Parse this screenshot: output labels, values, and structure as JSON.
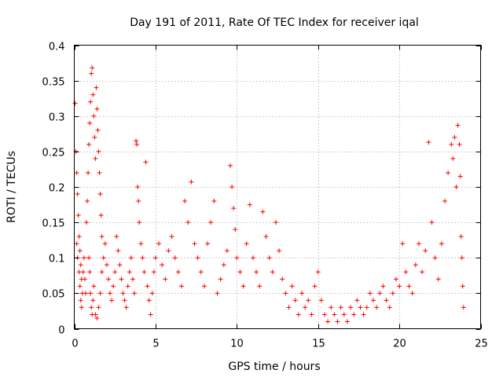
{
  "chart_data": {
    "type": "scatter",
    "title": "Day 191 of 2011, Rate Of TEC Index for receiver iqal",
    "xlabel": "GPS time / hours",
    "ylabel": "ROTI / TECUs",
    "xlim": [
      0,
      25
    ],
    "ylim": [
      0,
      0.4
    ],
    "xticks": [
      0,
      5,
      10,
      15,
      20,
      25
    ],
    "xtick_labels": [
      "0",
      "5",
      "10",
      "15",
      "20",
      "25"
    ],
    "yticks": [
      0,
      0.05,
      0.1,
      0.15,
      0.2,
      0.25,
      0.3,
      0.35,
      0.4
    ],
    "ytick_labels": [
      "0",
      "0.05",
      "0.1",
      "0.15",
      "0.2",
      "0.25",
      "0.3",
      "0.35",
      "0.4"
    ],
    "grid": true,
    "marker": "plus",
    "color": "#ff0000",
    "series": [
      {
        "values_note_free": true,
        "points": [
          [
            0.05,
            0.318
          ],
          [
            0.1,
            0.25
          ],
          [
            0.15,
            0.22
          ],
          [
            0.2,
            0.19
          ],
          [
            0.25,
            0.16
          ],
          [
            0.3,
            0.13
          ],
          [
            0.35,
            0.11
          ],
          [
            0.4,
            0.09
          ],
          [
            0.45,
            0.07
          ],
          [
            0.5,
            0.05
          ],
          [
            0.15,
            0.12
          ],
          [
            0.2,
            0.1
          ],
          [
            0.3,
            0.08
          ],
          [
            0.35,
            0.06
          ],
          [
            0.4,
            0.04
          ],
          [
            0.45,
            0.03
          ],
          [
            0.55,
            0.08
          ],
          [
            0.6,
            0.1
          ],
          [
            0.65,
            0.07
          ],
          [
            0.7,
            0.05
          ],
          [
            0.75,
            0.15
          ],
          [
            0.8,
            0.18
          ],
          [
            0.85,
            0.22
          ],
          [
            0.9,
            0.26
          ],
          [
            0.95,
            0.29
          ],
          [
            1.0,
            0.32
          ],
          [
            1.05,
            0.36
          ],
          [
            1.1,
            0.368
          ],
          [
            1.15,
            0.33
          ],
          [
            1.2,
            0.3
          ],
          [
            1.25,
            0.27
          ],
          [
            1.3,
            0.24
          ],
          [
            1.35,
            0.34
          ],
          [
            1.4,
            0.31
          ],
          [
            1.45,
            0.28
          ],
          [
            1.5,
            0.25
          ],
          [
            1.55,
            0.22
          ],
          [
            1.6,
            0.19
          ],
          [
            1.65,
            0.16
          ],
          [
            1.7,
            0.13
          ],
          [
            0.9,
            0.1
          ],
          [
            0.95,
            0.08
          ],
          [
            1.0,
            0.05
          ],
          [
            1.05,
            0.03
          ],
          [
            1.1,
            0.02
          ],
          [
            1.15,
            0.04
          ],
          [
            1.2,
            0.06
          ],
          [
            1.3,
            0.02
          ],
          [
            1.4,
            0.015
          ],
          [
            1.5,
            0.03
          ],
          [
            1.6,
            0.05
          ],
          [
            1.7,
            0.08
          ],
          [
            1.8,
            0.1
          ],
          [
            1.9,
            0.12
          ],
          [
            2.0,
            0.09
          ],
          [
            2.1,
            0.07
          ],
          [
            2.2,
            0.05
          ],
          [
            2.3,
            0.04
          ],
          [
            2.4,
            0.06
          ],
          [
            2.5,
            0.08
          ],
          [
            2.6,
            0.13
          ],
          [
            2.7,
            0.11
          ],
          [
            2.8,
            0.09
          ],
          [
            2.9,
            0.07
          ],
          [
            3.0,
            0.05
          ],
          [
            3.1,
            0.04
          ],
          [
            3.2,
            0.03
          ],
          [
            3.3,
            0.06
          ],
          [
            3.4,
            0.08
          ],
          [
            3.5,
            0.1
          ],
          [
            3.6,
            0.07
          ],
          [
            3.7,
            0.05
          ],
          [
            3.8,
            0.265
          ],
          [
            3.85,
            0.26
          ],
          [
            3.9,
            0.2
          ],
          [
            3.95,
            0.18
          ],
          [
            4.0,
            0.15
          ],
          [
            4.1,
            0.12
          ],
          [
            4.2,
            0.1
          ],
          [
            4.3,
            0.08
          ],
          [
            4.4,
            0.235
          ],
          [
            4.5,
            0.06
          ],
          [
            4.6,
            0.04
          ],
          [
            4.7,
            0.02
          ],
          [
            4.8,
            0.05
          ],
          [
            4.9,
            0.08
          ],
          [
            5.0,
            0.1
          ],
          [
            5.2,
            0.12
          ],
          [
            5.4,
            0.09
          ],
          [
            5.6,
            0.07
          ],
          [
            5.8,
            0.11
          ],
          [
            6.0,
            0.13
          ],
          [
            6.2,
            0.1
          ],
          [
            6.4,
            0.08
          ],
          [
            6.6,
            0.06
          ],
          [
            6.8,
            0.18
          ],
          [
            7.0,
            0.15
          ],
          [
            7.2,
            0.207
          ],
          [
            7.4,
            0.12
          ],
          [
            7.6,
            0.1
          ],
          [
            7.8,
            0.08
          ],
          [
            8.0,
            0.06
          ],
          [
            8.2,
            0.12
          ],
          [
            8.4,
            0.15
          ],
          [
            8.6,
            0.18
          ],
          [
            8.8,
            0.05
          ],
          [
            9.0,
            0.07
          ],
          [
            9.2,
            0.09
          ],
          [
            9.4,
            0.11
          ],
          [
            9.6,
            0.23
          ],
          [
            9.7,
            0.2
          ],
          [
            9.8,
            0.17
          ],
          [
            9.9,
            0.14
          ],
          [
            10.0,
            0.1
          ],
          [
            10.2,
            0.08
          ],
          [
            10.4,
            0.06
          ],
          [
            10.6,
            0.12
          ],
          [
            10.8,
            0.175
          ],
          [
            11.0,
            0.1
          ],
          [
            11.2,
            0.08
          ],
          [
            11.4,
            0.06
          ],
          [
            11.6,
            0.165
          ],
          [
            11.8,
            0.13
          ],
          [
            12.0,
            0.1
          ],
          [
            12.2,
            0.08
          ],
          [
            12.4,
            0.15
          ],
          [
            12.6,
            0.11
          ],
          [
            12.8,
            0.07
          ],
          [
            13.0,
            0.05
          ],
          [
            13.2,
            0.03
          ],
          [
            13.4,
            0.06
          ],
          [
            13.6,
            0.04
          ],
          [
            13.8,
            0.02
          ],
          [
            14.0,
            0.05
          ],
          [
            14.2,
            0.03
          ],
          [
            14.4,
            0.04
          ],
          [
            14.6,
            0.02
          ],
          [
            14.8,
            0.06
          ],
          [
            15.0,
            0.08
          ],
          [
            15.2,
            0.04
          ],
          [
            15.4,
            0.02
          ],
          [
            15.6,
            0.01
          ],
          [
            15.8,
            0.03
          ],
          [
            16.0,
            0.02
          ],
          [
            16.2,
            0.01
          ],
          [
            16.4,
            0.03
          ],
          [
            16.6,
            0.02
          ],
          [
            16.8,
            0.01
          ],
          [
            17.0,
            0.03
          ],
          [
            17.2,
            0.02
          ],
          [
            17.4,
            0.04
          ],
          [
            17.6,
            0.03
          ],
          [
            17.8,
            0.02
          ],
          [
            18.0,
            0.03
          ],
          [
            18.2,
            0.05
          ],
          [
            18.4,
            0.04
          ],
          [
            18.6,
            0.03
          ],
          [
            18.8,
            0.05
          ],
          [
            19.0,
            0.06
          ],
          [
            19.2,
            0.04
          ],
          [
            19.4,
            0.03
          ],
          [
            19.6,
            0.05
          ],
          [
            19.8,
            0.07
          ],
          [
            20.0,
            0.06
          ],
          [
            20.2,
            0.12
          ],
          [
            20.4,
            0.08
          ],
          [
            20.6,
            0.06
          ],
          [
            20.8,
            0.05
          ],
          [
            21.0,
            0.09
          ],
          [
            21.2,
            0.12
          ],
          [
            21.4,
            0.08
          ],
          [
            21.6,
            0.11
          ],
          [
            21.8,
            0.263
          ],
          [
            22.0,
            0.15
          ],
          [
            22.2,
            0.1
          ],
          [
            22.4,
            0.07
          ],
          [
            22.6,
            0.12
          ],
          [
            22.8,
            0.18
          ],
          [
            23.0,
            0.22
          ],
          [
            23.2,
            0.26
          ],
          [
            23.3,
            0.24
          ],
          [
            23.4,
            0.27
          ],
          [
            23.5,
            0.2
          ],
          [
            23.6,
            0.287
          ],
          [
            23.7,
            0.26
          ],
          [
            23.75,
            0.215
          ],
          [
            23.8,
            0.13
          ],
          [
            23.85,
            0.1
          ],
          [
            23.9,
            0.06
          ],
          [
            23.95,
            0.03
          ]
        ]
      }
    ]
  }
}
